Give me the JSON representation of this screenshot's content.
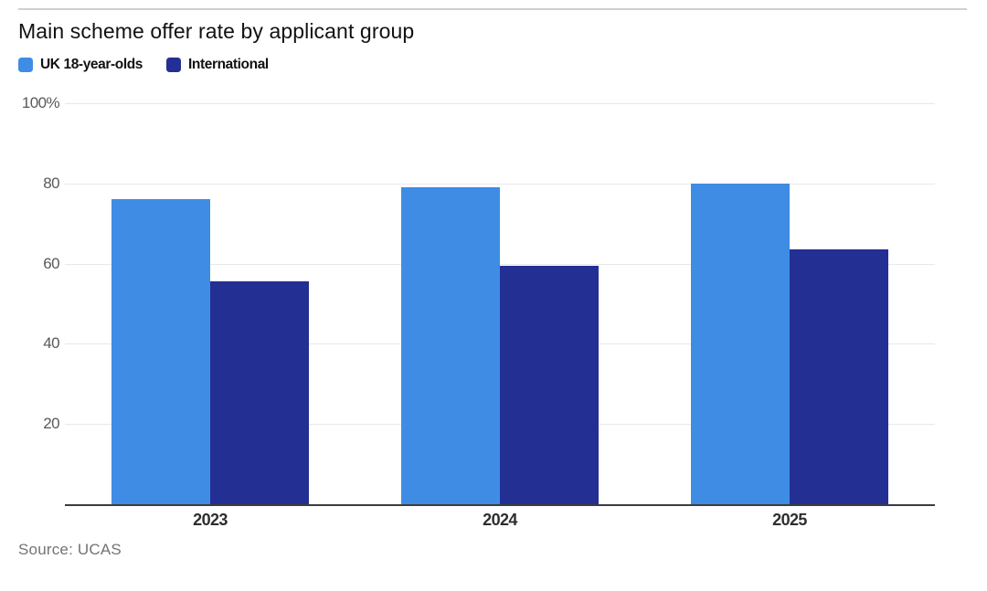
{
  "chart_data": {
    "type": "bar",
    "title": "Main scheme offer rate by applicant group",
    "categories": [
      "2023",
      "2024",
      "2025"
    ],
    "series": [
      {
        "name": "UK 18-year-olds",
        "color": "#3F8CE5",
        "values": [
          76,
          79,
          80
        ]
      },
      {
        "name": "International",
        "color": "#232F93",
        "values": [
          55.5,
          59.5,
          63.5
        ]
      }
    ],
    "xlabel": "",
    "ylabel": "",
    "ylim": [
      0,
      100
    ],
    "yticks": [
      {
        "value": 100,
        "label": "100%"
      },
      {
        "value": 80,
        "label": "80"
      },
      {
        "value": 60,
        "label": "60"
      },
      {
        "value": 40,
        "label": "40"
      },
      {
        "value": 20,
        "label": "20"
      }
    ],
    "grid": true,
    "legend_position": "top-left"
  },
  "source_note": "Source: UCAS",
  "colors": {
    "title_text": "#121212",
    "tick_text": "#595959",
    "xtick_text": "#2e2e2e",
    "source_text": "#737373",
    "gridline": "#e8e8e8",
    "axis_line": "#3c3c3c",
    "top_rule": "#cfcfcf",
    "background": "#ffffff"
  }
}
